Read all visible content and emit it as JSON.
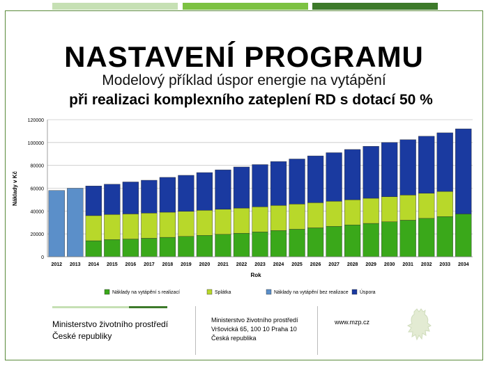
{
  "header": {
    "title": "NASTAVENÍ PROGRAMU",
    "subtitle": "Modelový příklad úspor energie na vytápění",
    "subtitle2": "při realizaci komplexního zateplení RD s dotací 50 %"
  },
  "colors": {
    "frame": "#5a8a3a",
    "topbar1": "#c6e0b4",
    "topbar2": "#7dc242",
    "topbar3": "#3d7a2a"
  },
  "chart_data": {
    "type": "bar",
    "stacked": true,
    "xlabel": "Rok",
    "ylabel": "Náklady v Kč",
    "ylim": [
      0,
      120000
    ],
    "yticks": [
      0,
      20000,
      40000,
      60000,
      80000,
      100000,
      120000
    ],
    "grid": true,
    "legend_position": "bottom",
    "categories": [
      "2012",
      "2013",
      "2014",
      "2015",
      "2016",
      "2017",
      "2018",
      "2019",
      "2020",
      "2021",
      "2022",
      "2023",
      "2024",
      "2025",
      "2026",
      "2027",
      "2028",
      "2029",
      "2030",
      "2031",
      "2032",
      "2033",
      "2034"
    ],
    "series": [
      {
        "name": "Náklady na vytápění s realizací",
        "color": "#3aa81a",
        "values": [
          0,
          0,
          14000,
          15000,
          15500,
          16200,
          17000,
          17800,
          18700,
          19600,
          20600,
          21700,
          22900,
          24100,
          25300,
          26600,
          27900,
          29200,
          30600,
          32000,
          33600,
          35200,
          37500
        ]
      },
      {
        "name": "Splátka",
        "color": "#b8d82a",
        "values": [
          0,
          0,
          22000,
          22000,
          22000,
          22000,
          22000,
          22000,
          22000,
          22000,
          22000,
          22000,
          22000,
          22000,
          22000,
          22000,
          22000,
          22000,
          22000,
          22000,
          22000,
          22000,
          0
        ]
      },
      {
        "name": "Náklady na vytápění bez realizace",
        "color": "#5b8fc9",
        "values": [
          58000,
          60000,
          0,
          0,
          0,
          0,
          0,
          0,
          0,
          0,
          0,
          0,
          0,
          0,
          0,
          0,
          0,
          0,
          0,
          0,
          0,
          0,
          0
        ]
      },
      {
        "name": "Úspora",
        "color": "#1a3aa0",
        "values": [
          0,
          0,
          26000,
          26500,
          28000,
          28800,
          30500,
          31500,
          33000,
          34500,
          36000,
          37000,
          38500,
          39500,
          41000,
          42500,
          44000,
          45500,
          47500,
          48500,
          49900,
          51300,
          74500
        ]
      }
    ]
  },
  "footer": {
    "ministry_line1": "Ministerstvo životního prostředí",
    "ministry_line2": "České republiky",
    "address_line1": "Ministerstvo životního prostředí",
    "address_line2": "Vršovická 65, 100 10  Praha 10",
    "address_line3": "Česká republika",
    "web": "www.mzp.cz",
    "lion_icon": "czech-lion-emblem"
  }
}
